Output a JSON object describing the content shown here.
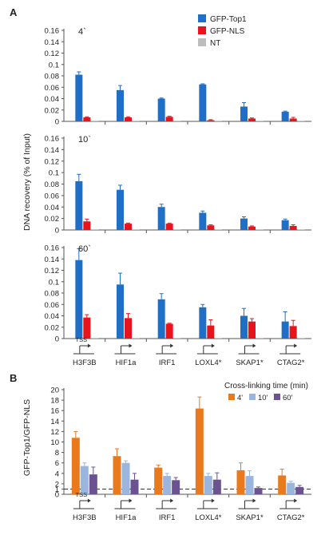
{
  "panel_labels": [
    "A",
    "B"
  ],
  "legend_a": {
    "entries": [
      {
        "name": "GFP-Top1",
        "color": "#1f6fc6"
      },
      {
        "name": "GFP-NLS",
        "color": "#e8141c"
      },
      {
        "name": "NT",
        "color": "#bdbdbd"
      }
    ]
  },
  "legend_b": {
    "title": "Cross-linking time (min)",
    "entries": [
      {
        "name": "4'",
        "color": "#e87a1d"
      },
      {
        "name": "10'",
        "color": "#9bb6dd"
      },
      {
        "name": "60'",
        "color": "#6a538f"
      }
    ]
  },
  "ylabel_a": "DNA recovery (% of Input)",
  "ylabel_b": "GFP-Top1/GFP-NLS",
  "gene_labels": [
    "H3F3B",
    "HIF1a",
    "IRF1",
    "LOXL4*",
    "SKAP1*",
    "CTAG2*"
  ],
  "tss_label": "TSS",
  "chart_data": [
    {
      "type": "bar",
      "panel": "A",
      "annotation": "4`",
      "categories": [
        "H3F3B",
        "HIF1a",
        "IRF1",
        "LOXL4*",
        "SKAP1*",
        "CTAG2*"
      ],
      "ylim": [
        0,
        0.16
      ],
      "yticks": [
        0,
        0.02,
        0.04,
        0.06,
        0.08,
        0.1,
        0.12,
        0.14,
        0.16
      ],
      "series": [
        {
          "name": "GFP-Top1",
          "values": [
            0.082,
            0.055,
            0.04,
            0.065,
            0.026,
            0.017
          ],
          "errors": [
            0.005,
            0.008,
            0.001,
            0.001,
            0.007,
            0.001
          ]
        },
        {
          "name": "GFP-NLS",
          "values": [
            0.007,
            0.007,
            0.008,
            0.002,
            0.005,
            0.005
          ],
          "errors": [
            0.001,
            0.001,
            0.001,
            0.001,
            0.001,
            0.002
          ]
        },
        {
          "name": "NT",
          "values": [
            0.001,
            0.001,
            0.001,
            0.001,
            0.001,
            0.001
          ],
          "errors": [
            0,
            0,
            0,
            0,
            0,
            0
          ]
        }
      ]
    },
    {
      "type": "bar",
      "panel": "A",
      "annotation": "10`",
      "categories": [
        "H3F3B",
        "HIF1a",
        "IRF1",
        "LOXL4*",
        "SKAP1*",
        "CTAG2*"
      ],
      "ylim": [
        0,
        0.16
      ],
      "yticks": [
        0,
        0.02,
        0.04,
        0.06,
        0.08,
        0.1,
        0.12,
        0.14,
        0.16
      ],
      "series": [
        {
          "name": "GFP-Top1",
          "values": [
            0.085,
            0.07,
            0.04,
            0.03,
            0.02,
            0.017
          ],
          "errors": [
            0.012,
            0.008,
            0.005,
            0.003,
            0.003,
            0.002
          ]
        },
        {
          "name": "GFP-NLS",
          "values": [
            0.015,
            0.011,
            0.011,
            0.008,
            0.006,
            0.007
          ],
          "errors": [
            0.004,
            0.001,
            0.001,
            0.001,
            0.001,
            0.002
          ]
        },
        {
          "name": "NT",
          "values": [
            0.001,
            0.001,
            0.001,
            0.001,
            0.001,
            0.001
          ],
          "errors": [
            0,
            0,
            0,
            0,
            0,
            0
          ]
        }
      ]
    },
    {
      "type": "bar",
      "panel": "A",
      "annotation": "60`",
      "categories": [
        "H3F3B",
        "HIF1a",
        "IRF1",
        "LOXL4*",
        "SKAP1*",
        "CTAG2*"
      ],
      "ylim": [
        0,
        0.16
      ],
      "yticks": [
        0,
        0.02,
        0.04,
        0.06,
        0.08,
        0.1,
        0.12,
        0.14,
        0.16
      ],
      "series": [
        {
          "name": "GFP-Top1",
          "values": [
            0.138,
            0.095,
            0.069,
            0.055,
            0.04,
            0.03
          ],
          "errors": [
            0.02,
            0.02,
            0.01,
            0.005,
            0.013,
            0.017
          ]
        },
        {
          "name": "GFP-NLS",
          "values": [
            0.037,
            0.036,
            0.026,
            0.023,
            0.03,
            0.022
          ],
          "errors": [
            0.005,
            0.008,
            0.001,
            0.01,
            0.005,
            0.01
          ]
        },
        {
          "name": "NT",
          "values": [
            0.001,
            0.001,
            0.001,
            0.001,
            0.001,
            0.001
          ],
          "errors": [
            0,
            0,
            0,
            0,
            0,
            0
          ]
        }
      ]
    },
    {
      "type": "bar",
      "panel": "B",
      "categories": [
        "H3F3B",
        "HIF1a",
        "IRF1",
        "LOXL4*",
        "SKAP1*",
        "CTAG2*"
      ],
      "ylim": [
        0,
        20
      ],
      "yticks": [
        0,
        2,
        4,
        6,
        8,
        10,
        12,
        14,
        16,
        18,
        20
      ],
      "extra_ytick": 1,
      "reference_line": 1,
      "series": [
        {
          "name": "4'",
          "values": [
            10.8,
            7.3,
            5.1,
            16.4,
            4.6,
            3.6
          ],
          "errors": [
            1.2,
            1.4,
            0.5,
            2.2,
            1.4,
            1.2
          ]
        },
        {
          "name": "10'",
          "values": [
            5.4,
            6.0,
            3.5,
            3.5,
            3.5,
            2.2
          ],
          "errors": [
            0.6,
            0.4,
            0.5,
            0.5,
            1.0,
            0.3
          ]
        },
        {
          "name": "60'",
          "values": [
            3.8,
            2.8,
            2.7,
            2.8,
            1.2,
            1.4
          ],
          "errors": [
            1.4,
            1.2,
            0.5,
            1.3,
            0.2,
            0.3
          ]
        }
      ]
    }
  ]
}
